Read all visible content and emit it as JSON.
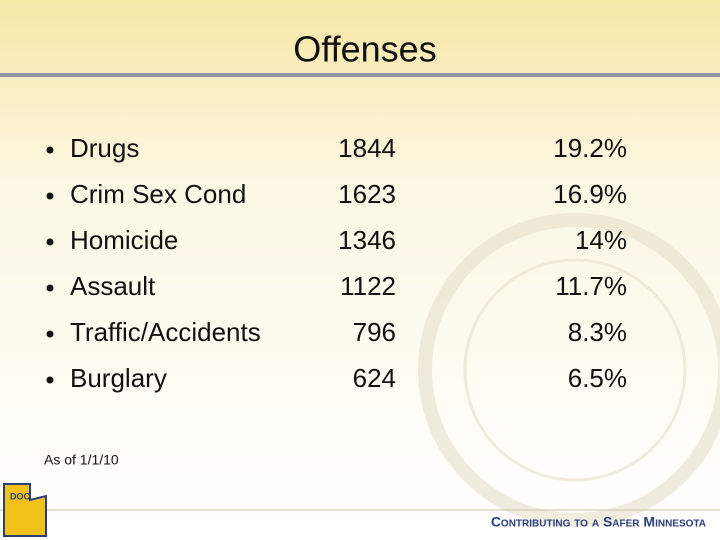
{
  "header": {
    "title": "Offenses"
  },
  "table": {
    "rows": [
      [
        "Drugs",
        "1844",
        "19.2%"
      ],
      [
        "Crim Sex Cond",
        "1623",
        "16.9%"
      ],
      [
        "Homicide",
        "1346",
        "14%"
      ],
      [
        "Assault",
        "1122",
        "11.7%"
      ],
      [
        "Traffic/Accidents",
        "796",
        "8.3%"
      ],
      [
        "Burglary",
        "624",
        "6.5%"
      ]
    ]
  },
  "footnote": "As of 1/1/10",
  "footer": {
    "logo": "DOC",
    "tagline": "Contributing to a Safer Minnesota"
  }
}
